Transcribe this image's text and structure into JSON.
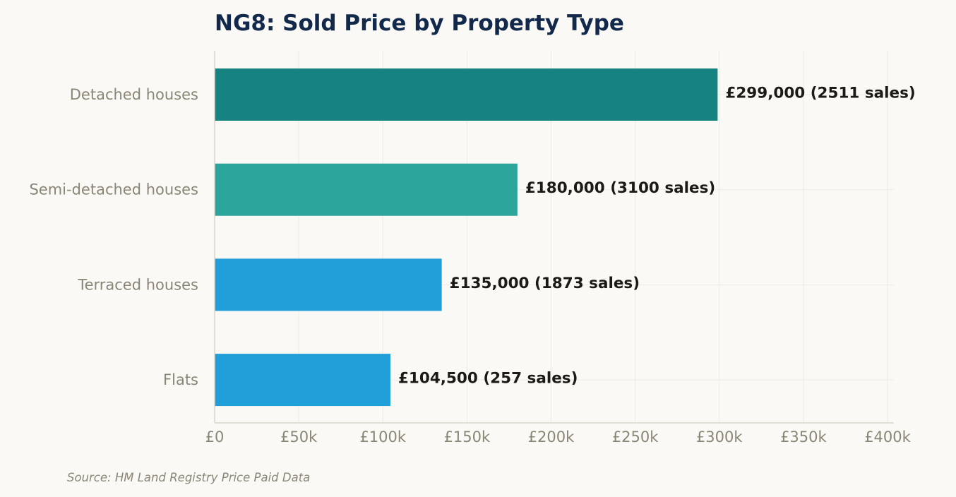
{
  "chart_data": {
    "type": "bar",
    "orientation": "horizontal",
    "title": "NG8: Sold Price by Property Type",
    "source": "Source: HM Land Registry Price Paid Data",
    "categories": [
      "Detached houses",
      "Semi-detached houses",
      "Terraced houses",
      "Flats"
    ],
    "values": [
      299000,
      180000,
      135000,
      104500
    ],
    "sales": [
      2511,
      3100,
      1873,
      257
    ],
    "data_labels": [
      "£299,000  (2511 sales)",
      "£180,000  (3100 sales)",
      "£135,000  (1873 sales)",
      "£104,500  (257 sales)"
    ],
    "xlim": [
      0,
      400000
    ],
    "x_ticks": [
      0,
      50000,
      100000,
      150000,
      200000,
      250000,
      300000,
      350000,
      400000
    ],
    "x_tick_labels": [
      "£0",
      "£50k",
      "£100k",
      "£150k",
      "£200k",
      "£250k",
      "£300k",
      "£350k",
      "£400k"
    ],
    "xlabel": "",
    "ylabel": "",
    "grid": true,
    "legend": "none"
  },
  "colors": {
    "background": "#faf9f5",
    "title": "#13294b",
    "axis_text": "#8a8676",
    "data_label": "#1c1a16",
    "grid": "#eeece4",
    "spine": "#d9d6cb",
    "bars": [
      "#178282",
      "#2ca59c",
      "#229fd9",
      "#229fd9"
    ]
  }
}
